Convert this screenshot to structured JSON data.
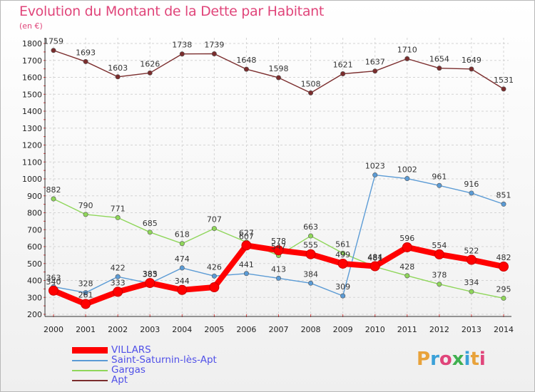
{
  "title": "Evolution du Montant de la Dette par Habitant",
  "unit_label": "(en €)",
  "logo": "Proxiti",
  "logo_colors": [
    "#e8a23a",
    "#3aa0d8",
    "#e0457a",
    "#40b050",
    "#3aa0d8",
    "#e8a23a",
    "#e0457a"
  ],
  "chart_data": {
    "type": "line",
    "title": "Evolution du Montant de la Dette par Habitant",
    "ylabel": "(en €)",
    "xlabel": "",
    "x": [
      "2000",
      "2001",
      "2002",
      "2003",
      "2004",
      "2005",
      "2006",
      "2007",
      "2008",
      "2009",
      "2010",
      "2011",
      "2012",
      "2013",
      "2014"
    ],
    "ylim": [
      200,
      1800
    ],
    "yticks": [
      200,
      300,
      400,
      500,
      600,
      700,
      800,
      900,
      1000,
      1100,
      1200,
      1300,
      1400,
      1500,
      1600,
      1700,
      1800
    ],
    "grid": true,
    "legend_position": "bottom-left",
    "series": [
      {
        "name": "VILLARS",
        "color": "#ff0000",
        "values": [
          340,
          261,
          333,
          385,
          344,
          360,
          607,
          578,
          555,
          499,
          484,
          596,
          554,
          522,
          482
        ],
        "labels": [
          340,
          261,
          333,
          385,
          344,
          "",
          607,
          578,
          555,
          499,
          484,
          596,
          554,
          522,
          482
        ]
      },
      {
        "name": "Saint-Saturnin-lès-Apt",
        "color": "#5b9bd5",
        "values": [
          363,
          328,
          422,
          383,
          474,
          426,
          441,
          413,
          384,
          309,
          1023,
          1002,
          961,
          916,
          851
        ],
        "labels": [
          363,
          328,
          422,
          383,
          474,
          426,
          441,
          413,
          384,
          309,
          1023,
          1002,
          961,
          916,
          851
        ]
      },
      {
        "name": "Gargas",
        "color": "#8fd65a",
        "values": [
          882,
          790,
          771,
          685,
          618,
          707,
          627,
          547,
          663,
          561,
          481,
          428,
          378,
          334,
          295
        ],
        "labels": [
          882,
          790,
          771,
          685,
          618,
          707,
          627,
          547,
          663,
          561,
          481,
          428,
          378,
          334,
          295
        ]
      },
      {
        "name": "Apt",
        "color": "#7b2d2d",
        "values": [
          1759,
          1693,
          1603,
          1626,
          1738,
          1739,
          1648,
          1598,
          1508,
          1621,
          1637,
          1710,
          1654,
          1649,
          1531
        ],
        "labels": [
          1759,
          1693,
          1603,
          1626,
          1738,
          1739,
          1648,
          1598,
          1508,
          1621,
          1637,
          1710,
          1654,
          1649,
          1531
        ]
      }
    ]
  }
}
